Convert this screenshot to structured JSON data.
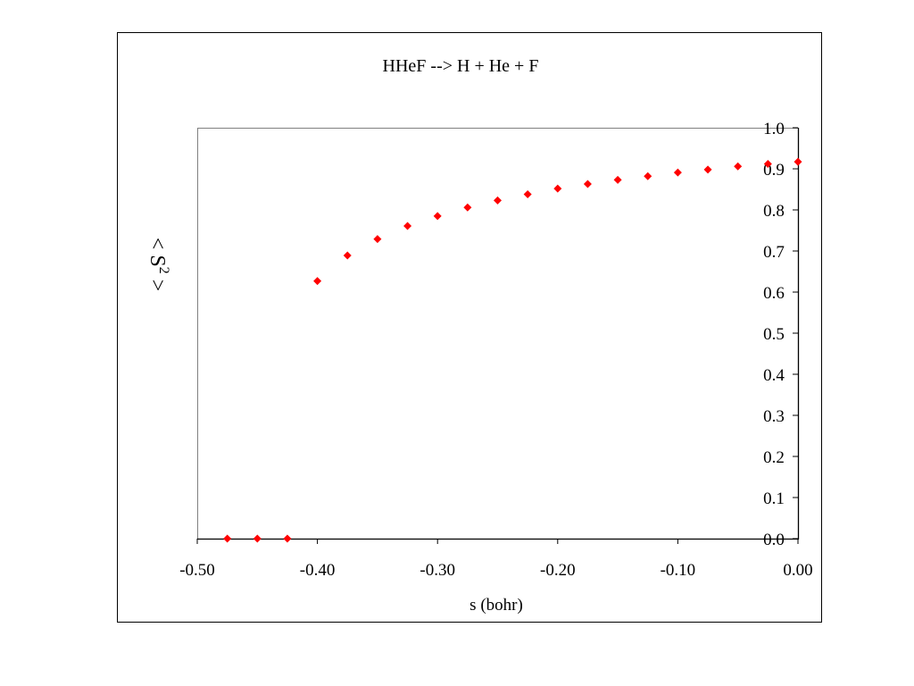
{
  "chart_data": {
    "type": "scatter",
    "title": "HHeF --> H + He + F",
    "xlabel": "s (bohr)",
    "ylabel": "< S",
    "ylabel_superscript": "2",
    "ylabel_suffix": " >",
    "xlim": [
      -0.5,
      0.0
    ],
    "ylim": [
      0.0,
      1.0
    ],
    "x_ticks": [
      "-0.50",
      "-0.40",
      "-0.30",
      "-0.20",
      "-0.10",
      "0.00"
    ],
    "x_tick_values": [
      -0.5,
      -0.4,
      -0.3,
      -0.2,
      -0.1,
      0.0
    ],
    "y_ticks": [
      "0.0",
      "0.1",
      "0.2",
      "0.3",
      "0.4",
      "0.5",
      "0.6",
      "0.7",
      "0.8",
      "0.9",
      "1.0"
    ],
    "y_tick_values": [
      0.0,
      0.1,
      0.2,
      0.3,
      0.4,
      0.5,
      0.6,
      0.7,
      0.8,
      0.9,
      1.0
    ],
    "y_axis_position": "right",
    "grid": false,
    "legend": "none",
    "marker": "diamond",
    "marker_color": "#ff0000",
    "series": [
      {
        "x": [
          -0.475,
          -0.45,
          -0.425,
          -0.4,
          -0.375,
          -0.35,
          -0.325,
          -0.3,
          -0.275,
          -0.25,
          -0.225,
          -0.2,
          -0.175,
          -0.15,
          -0.125,
          -0.1,
          -0.075,
          -0.05,
          -0.025,
          0.0
        ],
        "y": [
          0.0,
          0.0,
          0.0,
          0.627,
          0.689,
          0.729,
          0.761,
          0.785,
          0.806,
          0.823,
          0.838,
          0.852,
          0.863,
          0.873,
          0.882,
          0.891,
          0.898,
          0.906,
          0.912,
          0.917
        ]
      }
    ]
  }
}
